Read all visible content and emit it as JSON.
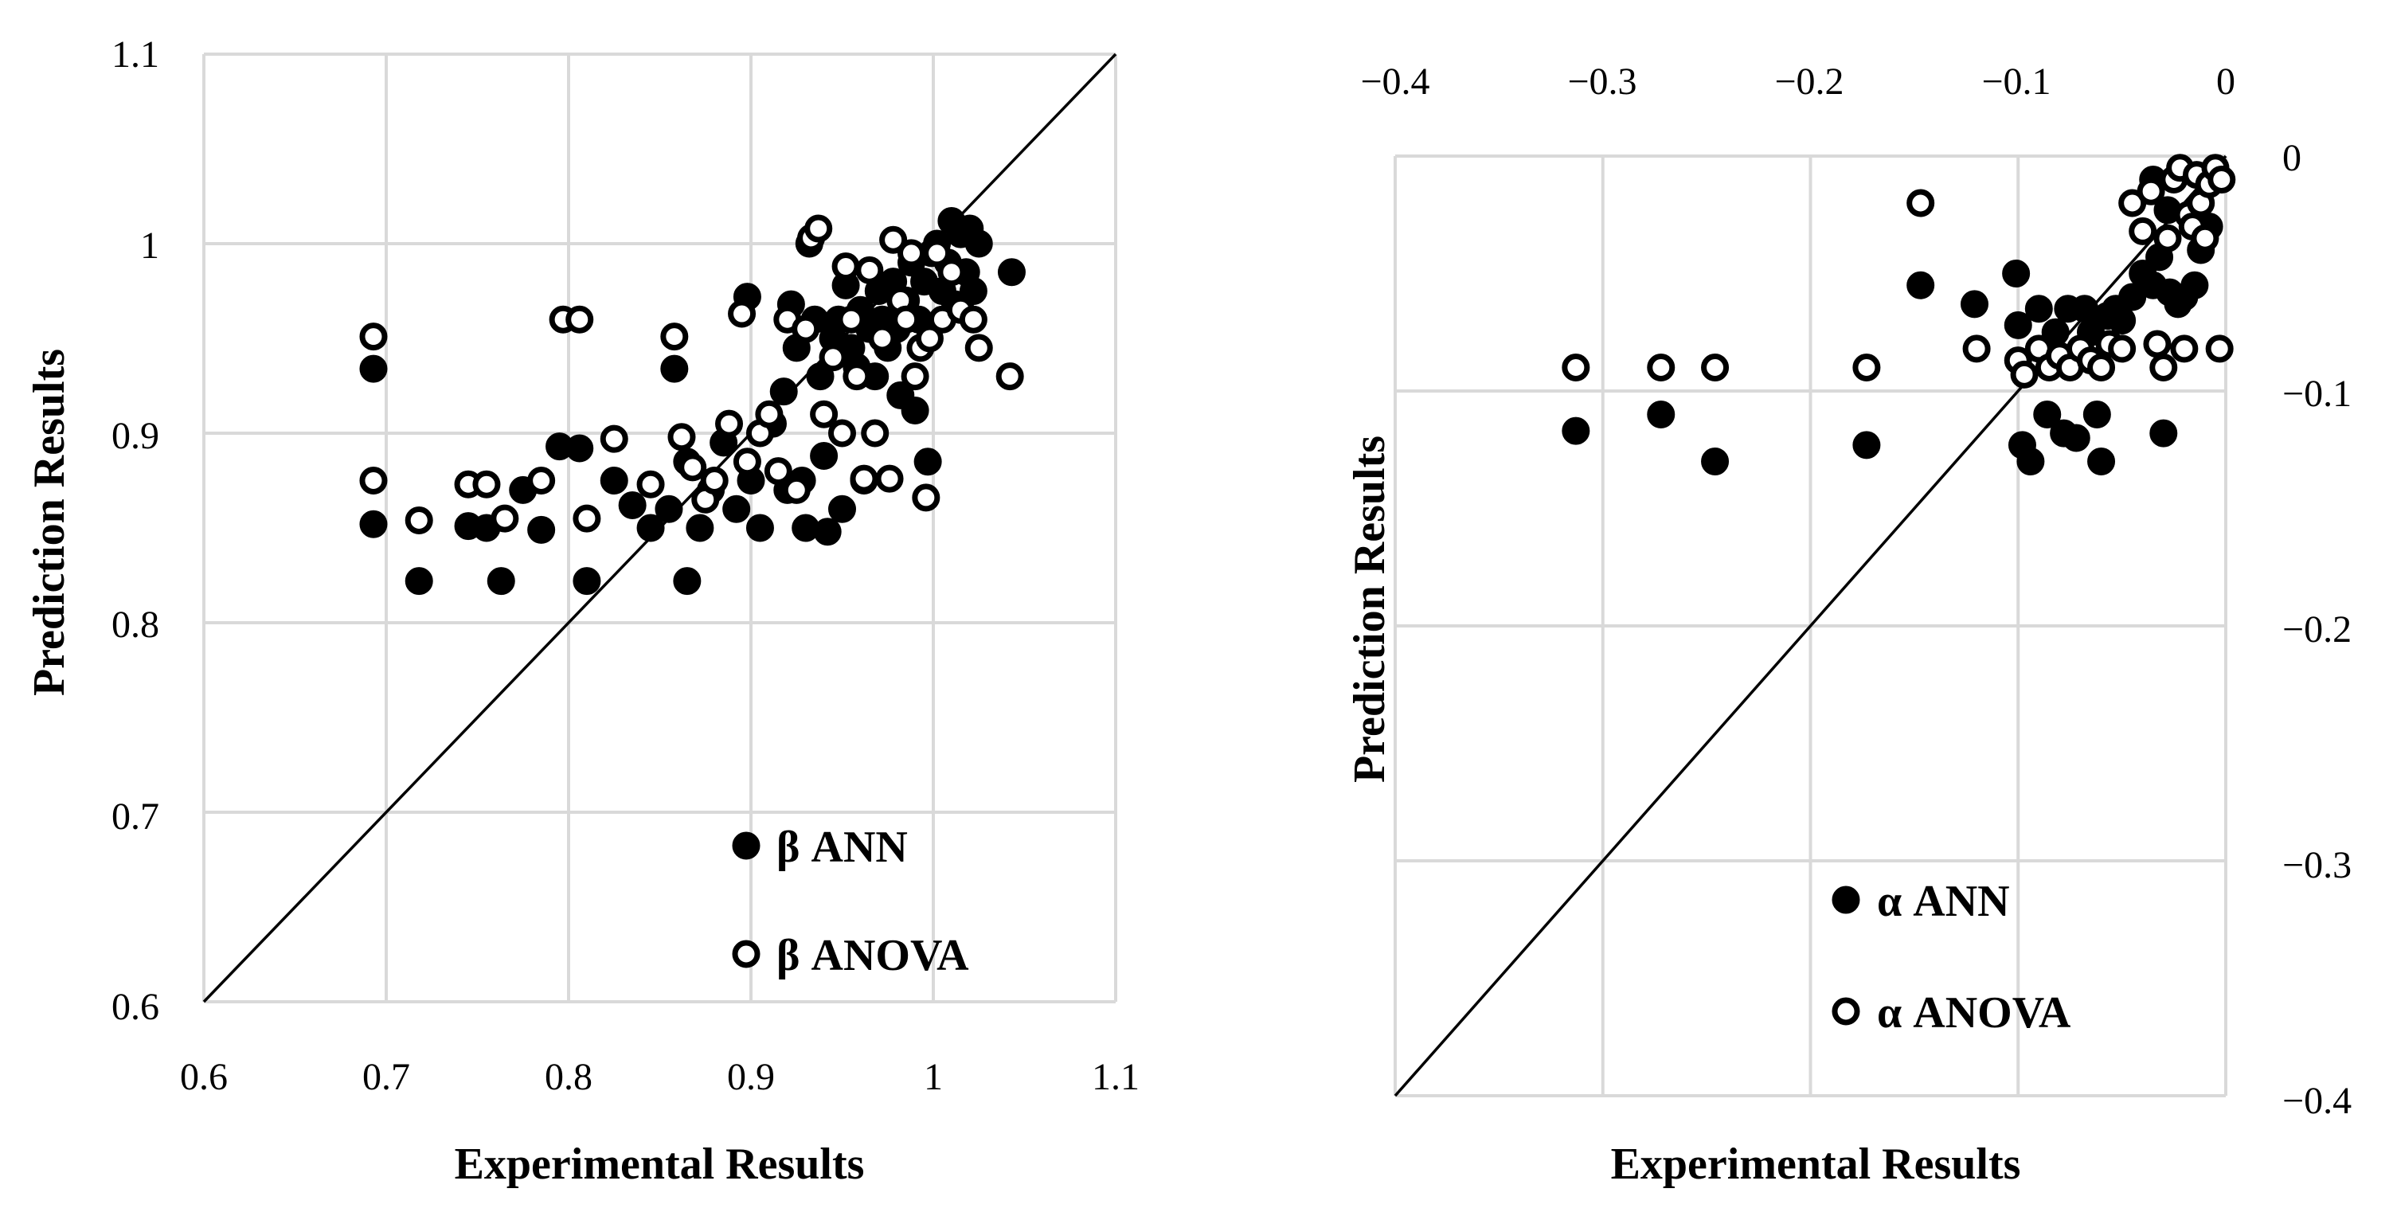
{
  "chart_data": [
    {
      "type": "scatter",
      "xlabel": "Experimental Results",
      "ylabel": "Prediction Results",
      "xlim": [
        0.6,
        1.1
      ],
      "ylim": [
        0.6,
        1.1
      ],
      "x_ticks": [
        "0.6",
        "0.7",
        "0.8",
        "0.9",
        "1",
        "1.1"
      ],
      "y_ticks": [
        "0.6",
        "0.7",
        "0.8",
        "0.9",
        "1",
        "1.1"
      ],
      "x_tick_values": [
        0.6,
        0.7,
        0.8,
        0.9,
        1.0,
        1.1
      ],
      "y_tick_values": [
        0.6,
        0.7,
        0.8,
        0.9,
        1.0,
        1.1
      ],
      "reference_line": [
        [
          0.6,
          0.6
        ],
        [
          1.1,
          1.1
        ]
      ],
      "legend_position": "bottom-right",
      "series": [
        {
          "name": "β ANN",
          "marker": "filled",
          "points": [
            [
              0.693,
              0.934
            ],
            [
              0.693,
              0.852
            ],
            [
              0.718,
              0.822
            ],
            [
              0.763,
              0.822
            ],
            [
              0.81,
              0.822
            ],
            [
              0.865,
              0.822
            ],
            [
              0.745,
              0.851
            ],
            [
              0.755,
              0.85
            ],
            [
              0.785,
              0.849
            ],
            [
              0.775,
              0.87
            ],
            [
              0.795,
              0.893
            ],
            [
              0.806,
              0.892
            ],
            [
              0.825,
              0.875
            ],
            [
              0.835,
              0.862
            ],
            [
              0.845,
              0.85
            ],
            [
              0.855,
              0.86
            ],
            [
              0.858,
              0.934
            ],
            [
              0.865,
              0.885
            ],
            [
              0.872,
              0.85
            ],
            [
              0.878,
              0.87
            ],
            [
              0.885,
              0.895
            ],
            [
              0.892,
              0.86
            ],
            [
              0.898,
              0.972
            ],
            [
              0.9,
              0.875
            ],
            [
              0.905,
              0.85
            ],
            [
              0.912,
              0.905
            ],
            [
              0.918,
              0.922
            ],
            [
              0.92,
              0.87
            ],
            [
              0.922,
              0.968
            ],
            [
              0.925,
              0.945
            ],
            [
              0.928,
              0.875
            ],
            [
              0.93,
              0.85
            ],
            [
              0.932,
              1.0
            ],
            [
              0.935,
              0.96
            ],
            [
              0.938,
              0.93
            ],
            [
              0.94,
              0.888
            ],
            [
              0.942,
              0.848
            ],
            [
              0.945,
              0.95
            ],
            [
              0.948,
              0.96
            ],
            [
              0.95,
              0.86
            ],
            [
              0.952,
              0.978
            ],
            [
              0.955,
              0.945
            ],
            [
              0.958,
              0.935
            ],
            [
              0.96,
              0.965
            ],
            [
              0.962,
              0.875
            ],
            [
              0.965,
              0.955
            ],
            [
              0.968,
              0.93
            ],
            [
              0.97,
              0.975
            ],
            [
              0.972,
              0.96
            ],
            [
              0.975,
              0.945
            ],
            [
              0.978,
              0.98
            ],
            [
              0.98,
              0.955
            ],
            [
              0.982,
              0.92
            ],
            [
              0.985,
              0.97
            ],
            [
              0.988,
              0.99
            ],
            [
              0.99,
              0.912
            ],
            [
              0.992,
              0.96
            ],
            [
              0.995,
              0.98
            ],
            [
              0.997,
              0.885
            ],
            [
              0.999,
              0.995
            ],
            [
              1.002,
              1.0
            ],
            [
              1.005,
              0.975
            ],
            [
              1.008,
              0.99
            ],
            [
              1.01,
              1.012
            ],
            [
              1.012,
              0.968
            ],
            [
              1.015,
              1.005
            ],
            [
              1.018,
              0.985
            ],
            [
              1.02,
              1.008
            ],
            [
              1.022,
              0.975
            ],
            [
              1.025,
              1.0
            ],
            [
              1.043,
              0.985
            ]
          ]
        },
        {
          "name": "β ANOVA",
          "marker": "open",
          "points": [
            [
              0.693,
              0.951
            ],
            [
              0.693,
              0.875
            ],
            [
              0.718,
              0.854
            ],
            [
              0.745,
              0.873
            ],
            [
              0.755,
              0.873
            ],
            [
              0.765,
              0.855
            ],
            [
              0.785,
              0.875
            ],
            [
              0.797,
              0.96
            ],
            [
              0.806,
              0.96
            ],
            [
              0.81,
              0.855
            ],
            [
              0.825,
              0.897
            ],
            [
              0.845,
              0.873
            ],
            [
              0.858,
              0.951
            ],
            [
              0.862,
              0.898
            ],
            [
              0.868,
              0.882
            ],
            [
              0.875,
              0.865
            ],
            [
              0.88,
              0.875
            ],
            [
              0.888,
              0.905
            ],
            [
              0.895,
              0.963
            ],
            [
              0.898,
              0.885
            ],
            [
              0.905,
              0.9
            ],
            [
              0.91,
              0.91
            ],
            [
              0.915,
              0.88
            ],
            [
              0.92,
              0.96
            ],
            [
              0.925,
              0.87
            ],
            [
              0.93,
              0.955
            ],
            [
              0.933,
              1.003
            ],
            [
              0.937,
              1.008
            ],
            [
              0.94,
              0.91
            ],
            [
              0.945,
              0.94
            ],
            [
              0.95,
              0.9
            ],
            [
              0.952,
              0.988
            ],
            [
              0.955,
              0.96
            ],
            [
              0.958,
              0.93
            ],
            [
              0.962,
              0.876
            ],
            [
              0.965,
              0.986
            ],
            [
              0.968,
              0.9
            ],
            [
              0.972,
              0.95
            ],
            [
              0.976,
              0.876
            ],
            [
              0.978,
              1.002
            ],
            [
              0.982,
              0.97
            ],
            [
              0.985,
              0.96
            ],
            [
              0.988,
              0.995
            ],
            [
              0.99,
              0.93
            ],
            [
              0.993,
              0.945
            ],
            [
              0.996,
              0.866
            ],
            [
              0.998,
              0.95
            ],
            [
              1.002,
              0.995
            ],
            [
              1.005,
              0.96
            ],
            [
              1.01,
              0.985
            ],
            [
              1.015,
              0.965
            ],
            [
              1.022,
              0.96
            ],
            [
              1.025,
              0.945
            ],
            [
              1.042,
              0.93
            ]
          ]
        }
      ]
    },
    {
      "type": "scatter",
      "xlabel": "Experimental Results",
      "ylabel": "Prediction Results",
      "xlim": [
        -0.4,
        0
      ],
      "ylim": [
        -0.4,
        0
      ],
      "x_axis_position": "top",
      "y_axis_position": "right",
      "x_ticks": [
        "−0.4",
        "−0.3",
        "−0.2",
        "−0.1",
        "0"
      ],
      "y_ticks": [
        "−0.4",
        "−0.3",
        "−0.2",
        "−0.1",
        "0"
      ],
      "x_tick_values": [
        -0.4,
        -0.3,
        -0.2,
        -0.1,
        0
      ],
      "y_tick_values": [
        -0.4,
        -0.3,
        -0.2,
        -0.1,
        0
      ],
      "reference_line": [
        [
          -0.4,
          -0.4
        ],
        [
          0,
          0
        ]
      ],
      "legend_position": "bottom-right",
      "series": [
        {
          "name": "α ANN",
          "marker": "filled",
          "points": [
            [
              -0.313,
              -0.117
            ],
            [
              -0.272,
              -0.11
            ],
            [
              -0.246,
              -0.13
            ],
            [
              -0.173,
              -0.123
            ],
            [
              -0.147,
              -0.055
            ],
            [
              -0.121,
              -0.063
            ],
            [
              -0.101,
              -0.05
            ],
            [
              -0.1,
              -0.072
            ],
            [
              -0.098,
              -0.123
            ],
            [
              -0.094,
              -0.13
            ],
            [
              -0.09,
              -0.065
            ],
            [
              -0.086,
              -0.11
            ],
            [
              -0.082,
              -0.075
            ],
            [
              -0.078,
              -0.118
            ],
            [
              -0.076,
              -0.065
            ],
            [
              -0.072,
              -0.12
            ],
            [
              -0.068,
              -0.065
            ],
            [
              -0.065,
              -0.075
            ],
            [
              -0.062,
              -0.11
            ],
            [
              -0.06,
              -0.13
            ],
            [
              -0.057,
              -0.068
            ],
            [
              -0.053,
              -0.065
            ],
            [
              -0.05,
              -0.07
            ],
            [
              -0.045,
              -0.06
            ],
            [
              -0.04,
              -0.05
            ],
            [
              -0.035,
              -0.055
            ],
            [
              -0.032,
              -0.043
            ],
            [
              -0.03,
              -0.118
            ],
            [
              -0.027,
              -0.058
            ],
            [
              -0.023,
              -0.063
            ],
            [
              -0.02,
              -0.06
            ],
            [
              -0.015,
              -0.055
            ],
            [
              -0.012,
              -0.04
            ],
            [
              -0.008,
              -0.03
            ],
            [
              -0.005,
              -0.01
            ],
            [
              -0.028,
              -0.023
            ],
            [
              -0.035,
              -0.01
            ]
          ]
        },
        {
          "name": "α ANOVA",
          "marker": "open",
          "points": [
            [
              -0.313,
              -0.09
            ],
            [
              -0.272,
              -0.09
            ],
            [
              -0.246,
              -0.09
            ],
            [
              -0.173,
              -0.09
            ],
            [
              -0.147,
              -0.02
            ],
            [
              -0.12,
              -0.082
            ],
            [
              -0.1,
              -0.087
            ],
            [
              -0.097,
              -0.093
            ],
            [
              -0.09,
              -0.082
            ],
            [
              -0.085,
              -0.09
            ],
            [
              -0.08,
              -0.085
            ],
            [
              -0.075,
              -0.09
            ],
            [
              -0.07,
              -0.082
            ],
            [
              -0.065,
              -0.087
            ],
            [
              -0.06,
              -0.09
            ],
            [
              -0.056,
              -0.08
            ],
            [
              -0.05,
              -0.082
            ],
            [
              -0.045,
              -0.02
            ],
            [
              -0.04,
              -0.032
            ],
            [
              -0.036,
              -0.015
            ],
            [
              -0.033,
              -0.08
            ],
            [
              -0.03,
              -0.09
            ],
            [
              -0.028,
              -0.035
            ],
            [
              -0.025,
              -0.01
            ],
            [
              -0.022,
              -0.005
            ],
            [
              -0.02,
              -0.082
            ],
            [
              -0.018,
              -0.025
            ],
            [
              -0.016,
              -0.03
            ],
            [
              -0.014,
              -0.008
            ],
            [
              -0.012,
              -0.02
            ],
            [
              -0.01,
              -0.035
            ],
            [
              -0.008,
              -0.012
            ],
            [
              -0.005,
              -0.005
            ],
            [
              -0.003,
              -0.082
            ],
            [
              -0.002,
              -0.01
            ]
          ]
        }
      ]
    }
  ]
}
